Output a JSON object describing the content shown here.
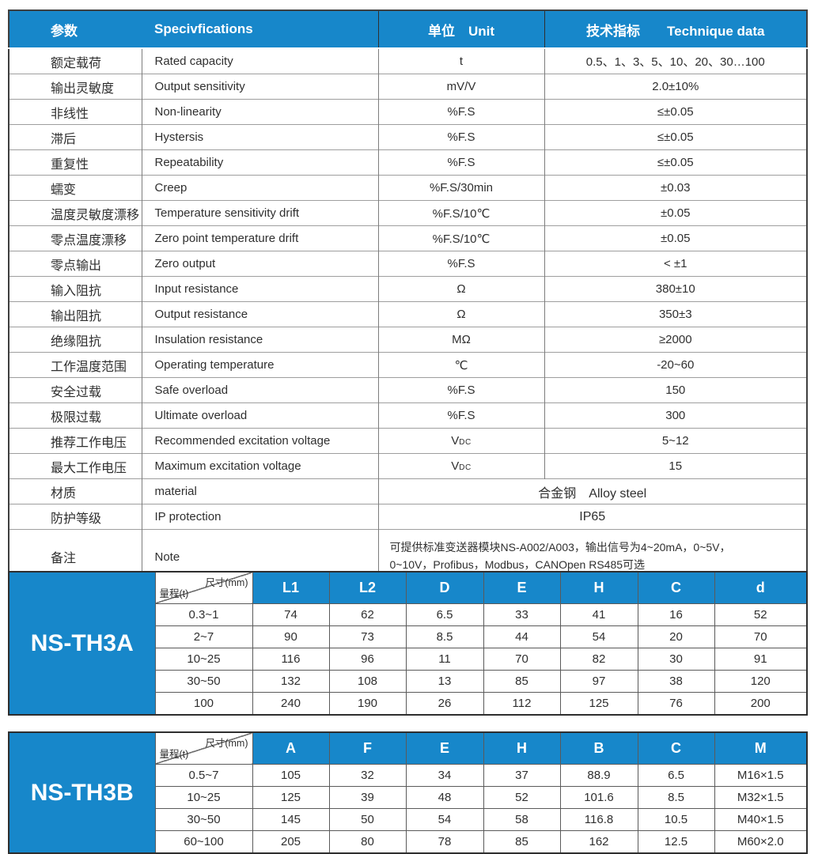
{
  "colors": {
    "header_blue": "#1787ca",
    "outer_border": "#3f3f3f",
    "inner_border": "#9e9e9e",
    "text": "#2f2f2f",
    "header_text": "#ffffff"
  },
  "spec_table": {
    "headers": {
      "param": "参数",
      "spec": "Specivfications",
      "unit": "单位　Unit",
      "tech": "技术指标　　Technique data"
    },
    "rows": [
      {
        "param": "额定载荷",
        "spec": "Rated capacity",
        "unit": "t",
        "tech": "0.5、1、3、5、10、20、30…100"
      },
      {
        "param": "输出灵敏度",
        "spec": "Output sensitivity",
        "unit": "mV/V",
        "tech": "2.0±10%"
      },
      {
        "param": "非线性",
        "spec": "Non-linearity",
        "unit": "%F.S",
        "tech": "≤±0.05"
      },
      {
        "param": "滞后",
        "spec": "Hystersis",
        "unit": "%F.S",
        "tech": "≤±0.05"
      },
      {
        "param": "重复性",
        "spec": "Repeatability",
        "unit": "%F.S",
        "tech": "≤±0.05"
      },
      {
        "param": "蠕变",
        "spec": "Creep",
        "unit": "%F.S/30min",
        "tech": "±0.03"
      },
      {
        "param": "温度灵敏度漂移",
        "spec": "Temperature sensitivity drift",
        "unit": "%F.S/10℃",
        "tech": "±0.05"
      },
      {
        "param": "零点温度漂移",
        "spec": "Zero point temperature drift",
        "unit": "%F.S/10℃",
        "tech": "±0.05"
      },
      {
        "param": "零点输出",
        "spec": "Zero output",
        "unit": "%F.S",
        "tech": "< ±1"
      },
      {
        "param": "输入阻抗",
        "spec": "Input resistance",
        "unit": "Ω",
        "tech": "380±10"
      },
      {
        "param": "输出阻抗",
        "spec": "Output resistance",
        "unit": "Ω",
        "tech": "350±3"
      },
      {
        "param": "绝缘阻抗",
        "spec": "Insulation resistance",
        "unit": "MΩ",
        "tech": "≥2000"
      },
      {
        "param": "工作温度范围",
        "spec": "Operating temperature",
        "unit": "℃",
        "tech": "-20~60"
      },
      {
        "param": "安全过载",
        "spec": "Safe overload",
        "unit": "%F.S",
        "tech": "150"
      },
      {
        "param": "极限过载",
        "spec": "Ultimate overload",
        "unit": "%F.S",
        "tech": "300"
      },
      {
        "param": "推荐工作电压",
        "spec": "Recommended excitation voltage",
        "unit": "V",
        "unit_sub": "DC",
        "tech": "5~12"
      },
      {
        "param": "最大工作电压",
        "spec": "Maximum excitation voltage",
        "unit": "V",
        "unit_sub": "DC",
        "tech": "15"
      },
      {
        "param": "材质",
        "spec": "material",
        "merged": "合金钢　Alloy steel"
      },
      {
        "param": "防护等级",
        "spec": "IP protection",
        "merged": "IP65"
      },
      {
        "param": "备注",
        "spec": "Note",
        "tall": true,
        "merged_lines": [
          "可提供标准变送器模块NS-A002/A003，输出信号为4~20mA，0~5V，",
          "0~10V，Profibus，Modbus，CANOpen RS485可选"
        ]
      }
    ]
  },
  "dim_tables": [
    {
      "model": "NS-TH3A",
      "corner_top": "尺寸(mm)",
      "corner_bottom": "量程(t)",
      "columns": [
        "L1",
        "L2",
        "D",
        "E",
        "H",
        "C",
        "d"
      ],
      "rows": [
        {
          "range": "0.3~1",
          "values": [
            "74",
            "62",
            "6.5",
            "33",
            "41",
            "16",
            "52"
          ]
        },
        {
          "range": "2~7",
          "values": [
            "90",
            "73",
            "8.5",
            "44",
            "54",
            "20",
            "70"
          ]
        },
        {
          "range": "10~25",
          "values": [
            "116",
            "96",
            "11",
            "70",
            "82",
            "30",
            "91"
          ]
        },
        {
          "range": "30~50",
          "values": [
            "132",
            "108",
            "13",
            "85",
            "97",
            "38",
            "120"
          ]
        },
        {
          "range": "100",
          "values": [
            "240",
            "190",
            "26",
            "112",
            "125",
            "76",
            "200"
          ]
        }
      ]
    },
    {
      "model": "NS-TH3B",
      "corner_top": "尺寸(mm)",
      "corner_bottom": "量程(t)",
      "columns": [
        "A",
        "F",
        "E",
        "H",
        "B",
        "C",
        "M"
      ],
      "rows": [
        {
          "range": "0.5~7",
          "values": [
            "105",
            "32",
            "34",
            "37",
            "88.9",
            "6.5",
            "M16×1.5"
          ]
        },
        {
          "range": "10~25",
          "values": [
            "125",
            "39",
            "48",
            "52",
            "101.6",
            "8.5",
            "M32×1.5"
          ]
        },
        {
          "range": "30~50",
          "values": [
            "145",
            "50",
            "54",
            "58",
            "116.8",
            "10.5",
            "M40×1.5"
          ]
        },
        {
          "range": "60~100",
          "values": [
            "205",
            "80",
            "78",
            "85",
            "162",
            "12.5",
            "M60×2.0"
          ]
        }
      ]
    }
  ]
}
